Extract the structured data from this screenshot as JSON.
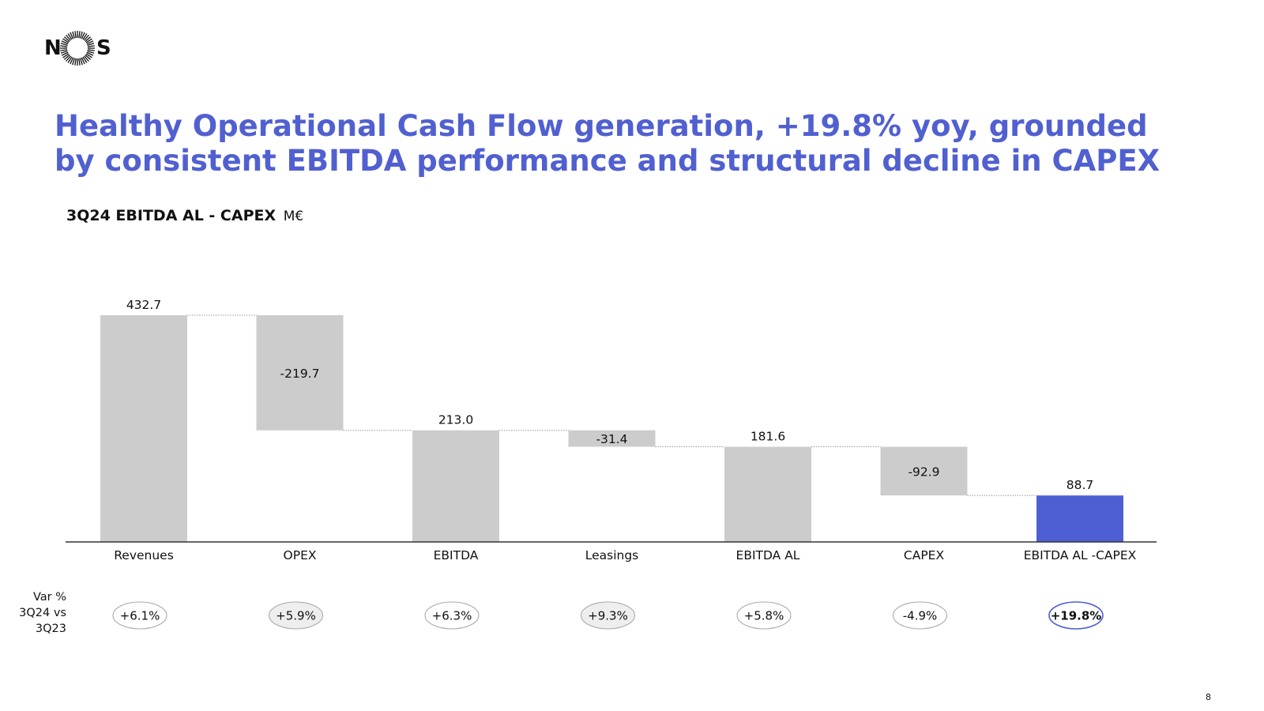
{
  "brand": {
    "logo_text_left": "N",
    "logo_text_right": "S",
    "accent_color": "#5160d0"
  },
  "headline": "Healthy Operational Cash Flow generation, +19.8% yoy, grounded by consistent EBITDA performance and structural decline in CAPEX",
  "chart_data": {
    "type": "bar",
    "subtype": "waterfall",
    "title": "3Q24 EBITDA AL - CAPEX",
    "unit": "M€",
    "categories": [
      "Revenues",
      "OPEX",
      "EBITDA",
      "Leasings",
      "EBITDA AL",
      "CAPEX",
      "EBITDA AL -CAPEX"
    ],
    "values": [
      432.7,
      -219.7,
      213.0,
      -31.4,
      181.6,
      -92.9,
      88.7
    ],
    "value_labels": [
      "432.7",
      "-219.7",
      "213.0",
      "-31.4",
      "181.6",
      "-92.9",
      "88.7"
    ],
    "bar_kind": [
      "total",
      "delta",
      "total",
      "delta",
      "total",
      "delta",
      "total"
    ],
    "ylim": [
      0,
      432.7
    ],
    "grid": false,
    "connectors": true,
    "colors": {
      "bar": "#cccccc",
      "highlight": "#4e5fd3",
      "connector": "#999999",
      "axis": "#333333"
    },
    "highlight_index": 6,
    "var_label": "Var % 3Q24 vs 3Q23",
    "var_values": [
      "+6.1%",
      "+5.9%",
      "+6.3%",
      "+9.3%",
      "+5.8%",
      "-4.9%",
      "+19.8%"
    ]
  },
  "page_number": "8"
}
